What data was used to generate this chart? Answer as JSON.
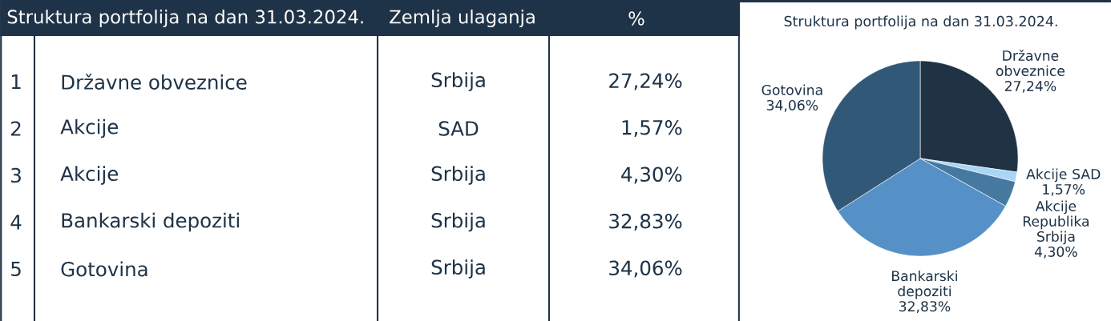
{
  "chart_data": {
    "type": "pie",
    "title": "Struktura portfolija na dan 31.03.2024.",
    "categories": [
      "Državne obveznice",
      "Akcije SAD",
      "Akcije Republika Srbija",
      "Bankarski depoziti",
      "Gotovina"
    ],
    "values": [
      27.24,
      1.57,
      4.3,
      32.83,
      34.06
    ],
    "colors": [
      "#1f3344",
      "#a9d5f7",
      "#46799f",
      "#5590c6",
      "#325877"
    ],
    "value_labels": [
      "27,24%",
      "1,57%",
      "4,30%",
      "32,83%",
      "34,06%"
    ],
    "annotations": [
      "Struktura portfolija na dan 31.03.2024.",
      "Zemlja ulaganja",
      "%",
      "1",
      "Državne obveznice",
      "Srbija",
      "27,24%",
      "2",
      "Akcije",
      "SAD",
      "1,57%",
      "3",
      "Akcije",
      "Srbija",
      "4,30%",
      "4",
      "Bankarski depoziti",
      "Srbija",
      "32,83%",
      "5",
      "Gotovina",
      "Srbija",
      "34,06%"
    ]
  }
}
